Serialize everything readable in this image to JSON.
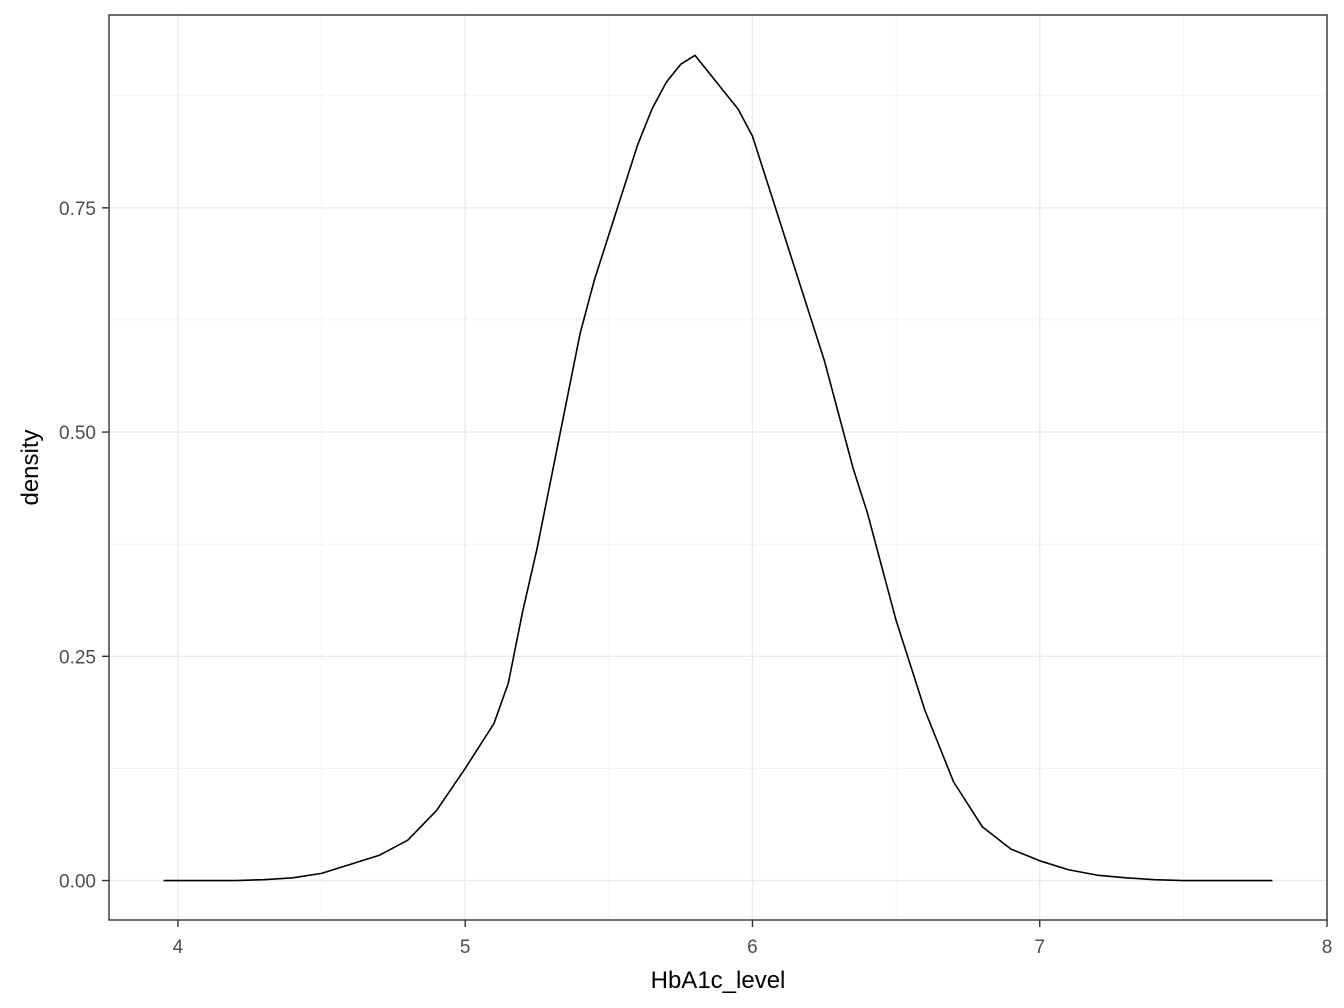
{
  "chart_data": {
    "type": "line",
    "title": "",
    "xlabel": "HbA1c_level",
    "ylabel": "density",
    "xlim": [
      3.76,
      8.0
    ],
    "ylim": [
      -0.044,
      0.965
    ],
    "x_ticks": [
      4,
      5,
      6,
      7,
      8
    ],
    "x_tick_labels": [
      "4",
      "5",
      "6",
      "7",
      "8"
    ],
    "x_minor_ticks": [
      4.5,
      5.5,
      6.5,
      7.5
    ],
    "y_ticks": [
      0.0,
      0.25,
      0.5,
      0.75
    ],
    "y_tick_labels": [
      "0.00",
      "0.25",
      "0.50",
      "0.75"
    ],
    "y_minor_ticks": [
      0.125,
      0.375,
      0.625,
      0.875
    ],
    "grid": true,
    "legend": "none",
    "series": [
      {
        "x": [
          3.95,
          4.1,
          4.2,
          4.3,
          4.4,
          4.5,
          4.6,
          4.7,
          4.8,
          4.9,
          5.0,
          5.1,
          5.15,
          5.2,
          5.25,
          5.3,
          5.35,
          5.4,
          5.45,
          5.5,
          5.55,
          5.6,
          5.65,
          5.7,
          5.75,
          5.8,
          5.85,
          5.9,
          5.95,
          6.0,
          6.05,
          6.1,
          6.15,
          6.2,
          6.25,
          6.3,
          6.35,
          6.4,
          6.45,
          6.5,
          6.55,
          6.6,
          6.65,
          6.7,
          6.8,
          6.9,
          7.0,
          7.1,
          7.2,
          7.3,
          7.4,
          7.5,
          7.6,
          7.7,
          7.81
        ],
        "y": [
          0.0,
          0.0,
          0.0,
          0.001,
          0.003,
          0.008,
          0.018,
          0.028,
          0.045,
          0.078,
          0.125,
          0.175,
          0.22,
          0.3,
          0.37,
          0.45,
          0.53,
          0.61,
          0.67,
          0.72,
          0.77,
          0.82,
          0.86,
          0.89,
          0.91,
          0.92,
          0.9,
          0.88,
          0.86,
          0.83,
          0.78,
          0.73,
          0.68,
          0.63,
          0.58,
          0.52,
          0.46,
          0.41,
          0.35,
          0.29,
          0.24,
          0.19,
          0.15,
          0.11,
          0.06,
          0.035,
          0.022,
          0.012,
          0.006,
          0.003,
          0.001,
          0.0,
          0.0,
          0.0,
          0.0
        ]
      }
    ]
  }
}
